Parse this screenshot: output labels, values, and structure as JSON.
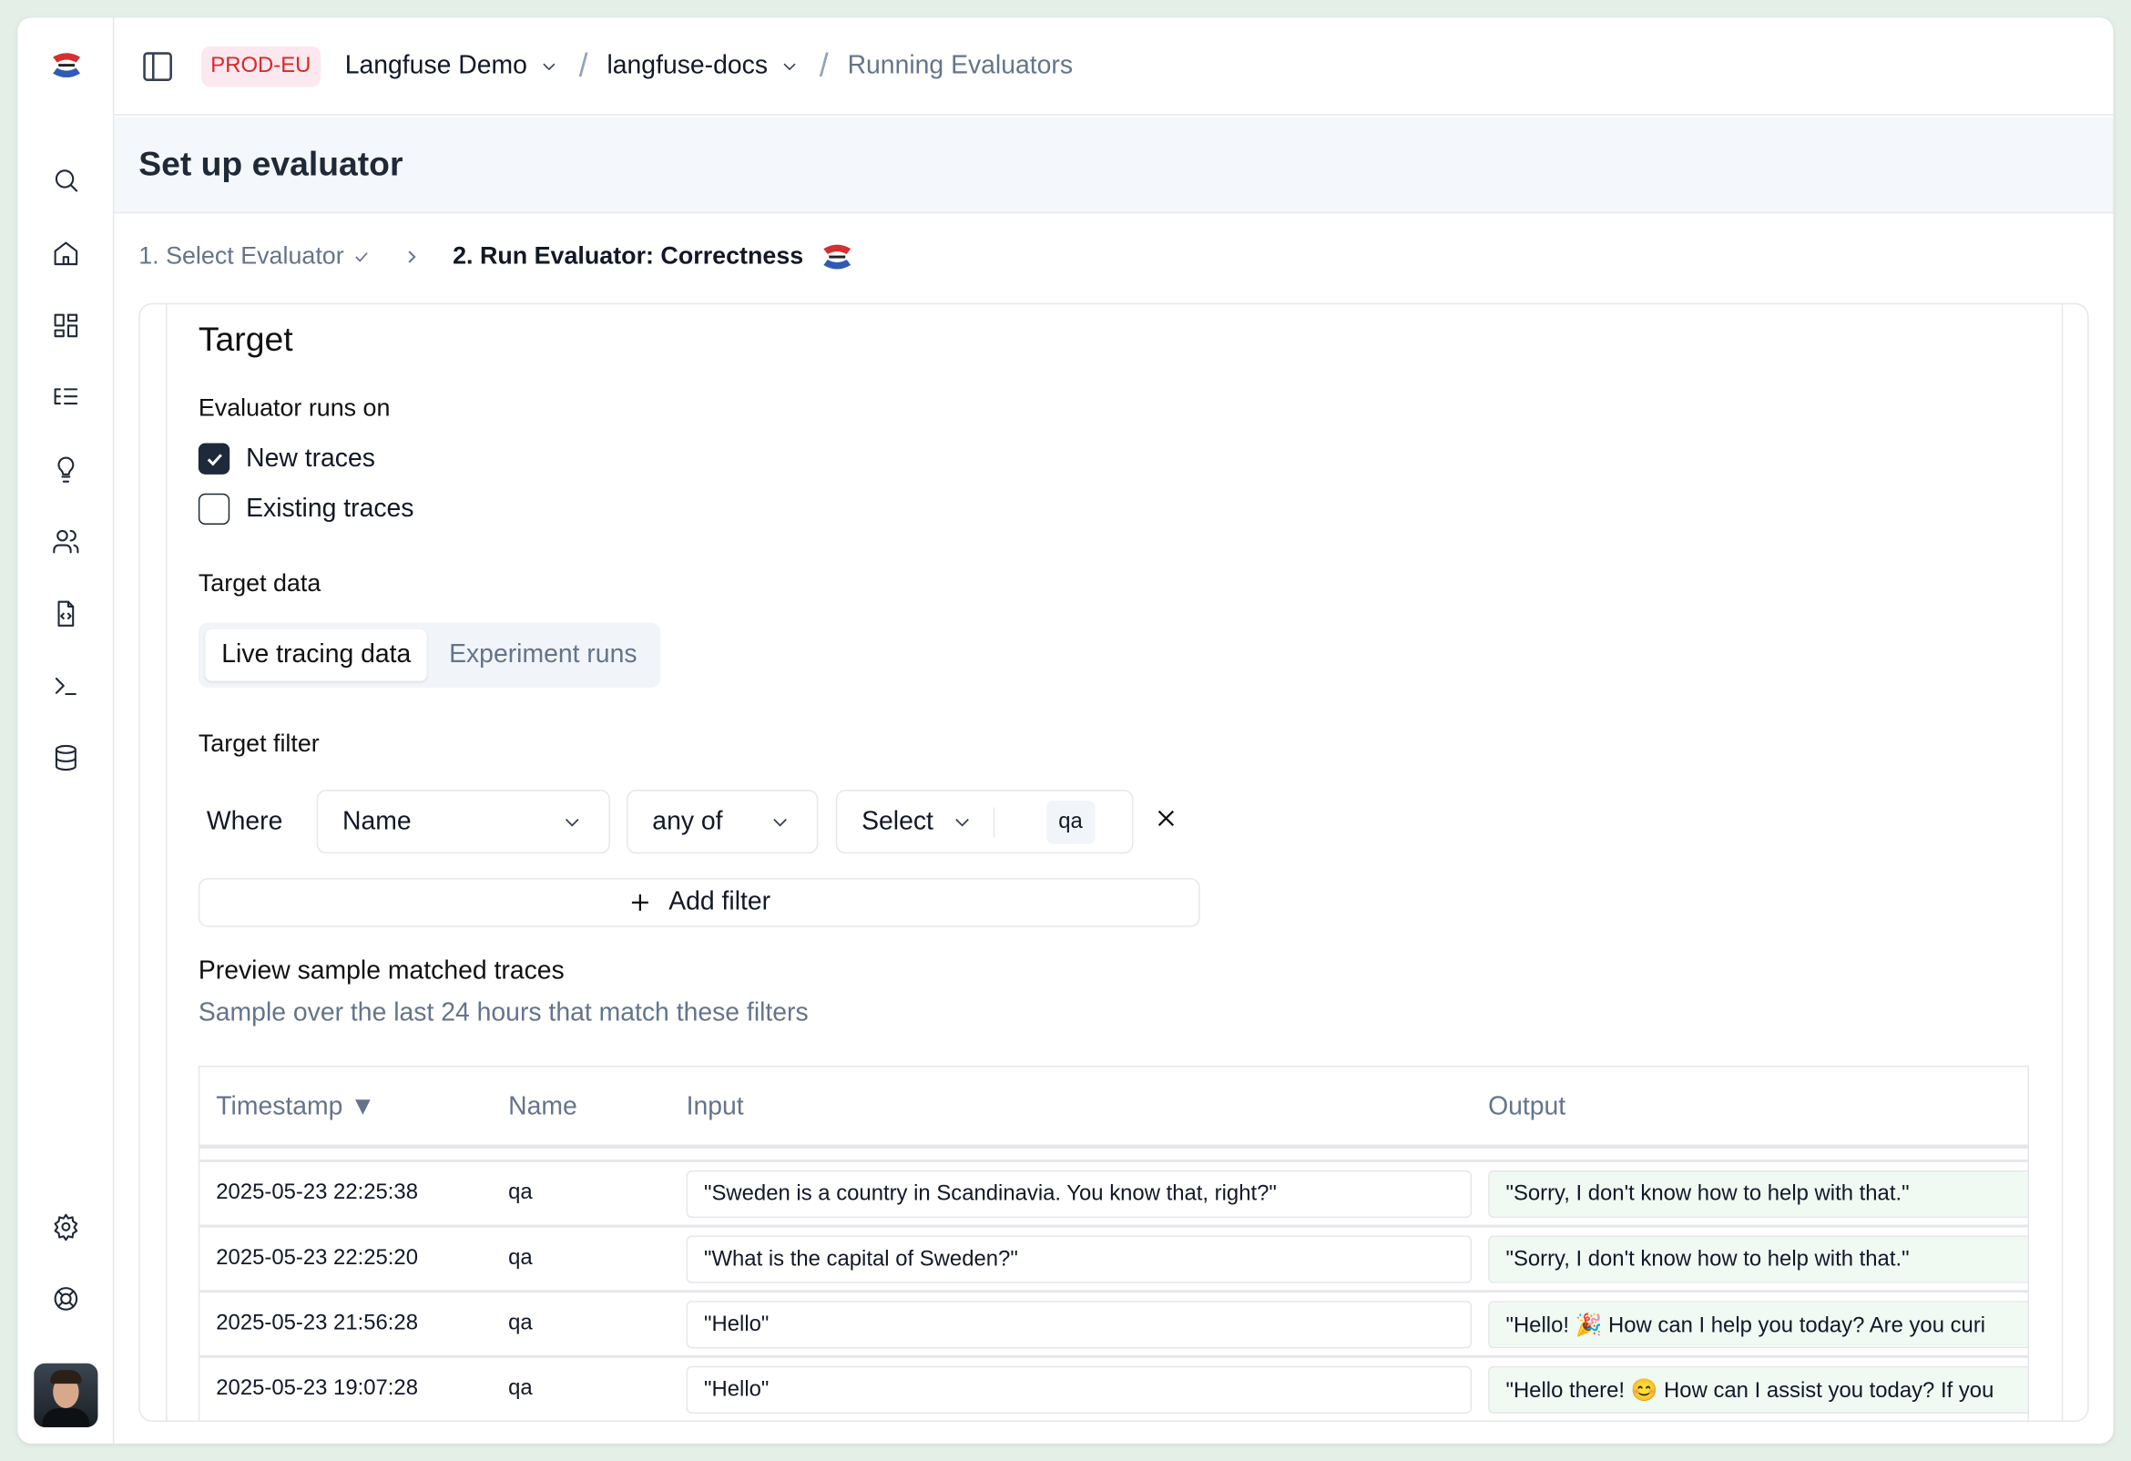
{
  "sidebar": {
    "items": [
      "search-icon",
      "home-icon",
      "dashboard-icon",
      "traces-icon",
      "lightbulb-icon",
      "users-icon",
      "prompt-file-icon",
      "terminal-icon",
      "database-icon"
    ],
    "bottom": [
      "settings-icon",
      "support-icon"
    ]
  },
  "topbar": {
    "environment": "PROD-EU",
    "organization": "Langfuse Demo",
    "project": "langfuse-docs",
    "page": "Running Evaluators"
  },
  "header": {
    "title": "Set up evaluator"
  },
  "steps": {
    "step1": "1. Select Evaluator",
    "step2": "2. Run Evaluator: Correctness"
  },
  "target": {
    "title": "Target",
    "runs_on_label": "Evaluator runs on",
    "options": [
      {
        "label": "New traces",
        "checked": true
      },
      {
        "label": "Existing traces",
        "checked": false
      }
    ],
    "data_label": "Target data",
    "data_tabs": [
      {
        "label": "Live tracing data",
        "active": true
      },
      {
        "label": "Experiment runs",
        "active": false
      }
    ],
    "filter_label": "Target filter",
    "filter": {
      "where": "Where",
      "column": "Name",
      "operator": "any of",
      "value_placeholder": "Select",
      "selected_value": "qa"
    },
    "add_filter": "Add filter"
  },
  "preview": {
    "title": "Preview sample matched traces",
    "subtitle": "Sample over the last 24 hours that match these filters",
    "columns": [
      "Timestamp ▼",
      "Name",
      "Input",
      "Output"
    ],
    "rows": [
      {
        "timestamp": "2025-05-23 22:25:38",
        "name": "qa",
        "input": "\"Sweden is a country in Scandinavia. You know that, right?\"",
        "output": "\"Sorry, I don't know how to help with that.\""
      },
      {
        "timestamp": "2025-05-23 22:25:20",
        "name": "qa",
        "input": "\"What is the capital of Sweden?\"",
        "output": "\"Sorry, I don't know how to help with that.\""
      },
      {
        "timestamp": "2025-05-23 21:56:28",
        "name": "qa",
        "input": "\"Hello\"",
        "output": "\"Hello! 🎉 How can I help you today? Are you curi"
      },
      {
        "timestamp": "2025-05-23 19:07:28",
        "name": "qa",
        "input": "\"Hello\"",
        "output": "\"Hello there! 😊 How can I assist you today? If you"
      }
    ]
  }
}
